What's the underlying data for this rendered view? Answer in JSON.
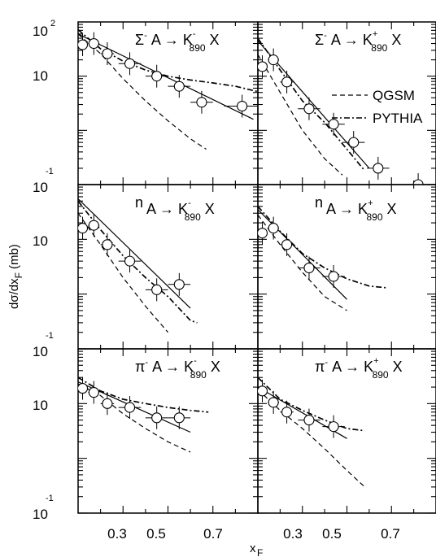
{
  "figure": {
    "ylabel": "dσ/dx",
    "ylabel_sub": "F",
    "ylabel_unit": "(mb)",
    "xlabel": "x",
    "xlabel_sub": "F",
    "legend": [
      {
        "label": "QGSM",
        "style": "dashed"
      },
      {
        "label": "PYTHIA",
        "style": "dash-dot"
      }
    ],
    "y_tick_labels": [
      {
        "base": "10",
        "exp": "2",
        "value": 100
      },
      {
        "base": "10",
        "exp": "",
        "value": 10
      },
      {
        "base": "10",
        "exp": "-1",
        "value": 1
      }
    ],
    "x_tick_labels": [
      "0.3",
      "0.5",
      "0.7"
    ]
  },
  "chart_data": [
    {
      "type": "scatter",
      "row": 0,
      "col": 0,
      "label": {
        "beam": "Σ",
        "beam_sup": "-",
        "target": "A",
        "arrow": "→",
        "product": "K",
        "product_sup": "-",
        "product_sub": "890",
        "x": "X"
      },
      "xlim": [
        0.1,
        0.9
      ],
      "ylim": [
        0.1,
        100
      ],
      "yscale": "log",
      "points": {
        "x": [
          0.12,
          0.17,
          0.23,
          0.33,
          0.45,
          0.55,
          0.65,
          0.83
        ],
        "y": [
          38,
          40,
          26,
          17,
          10,
          6.5,
          3.3,
          2.8
        ],
        "xerr": [
          0.02,
          0.025,
          0.03,
          0.05,
          0.05,
          0.05,
          0.05,
          0.08
        ]
      },
      "fit": {
        "x": [
          0.1,
          0.88
        ],
        "y": [
          60,
          1.6
        ]
      },
      "qgsm": {
        "x": [
          0.1,
          0.2,
          0.3,
          0.4,
          0.5,
          0.6,
          0.67
        ],
        "y": [
          60,
          26,
          9,
          3.5,
          1.5,
          0.7,
          0.45
        ]
      },
      "pythia": {
        "x": [
          0.1,
          0.2,
          0.3,
          0.4,
          0.5,
          0.6,
          0.7,
          0.8,
          0.9
        ],
        "y": [
          72,
          32,
          19,
          13,
          10,
          8.5,
          7.5,
          6.5,
          5.2
        ]
      }
    },
    {
      "type": "scatter",
      "row": 0,
      "col": 1,
      "label": {
        "beam": "Σ",
        "beam_sup": "-",
        "target": "A",
        "arrow": "→",
        "product": "K",
        "product_sup": "+",
        "product_sub": "890",
        "x": "X"
      },
      "xlim": [
        0.1,
        0.9
      ],
      "ylim": [
        0.1,
        100
      ],
      "yscale": "log",
      "points": {
        "x": [
          0.12,
          0.17,
          0.23,
          0.33,
          0.44,
          0.53,
          0.64,
          0.82
        ],
        "y": [
          15,
          20,
          7.8,
          2.5,
          1.3,
          0.6,
          0.2,
          0.1
        ],
        "xerr": [
          0.02,
          0.025,
          0.03,
          0.05,
          0.05,
          0.05,
          0.05,
          0.08
        ]
      },
      "fit": {
        "x": [
          0.1,
          0.6
        ],
        "y": [
          45,
          0.2
        ]
      },
      "qgsm": {
        "x": [
          0.1,
          0.2,
          0.3,
          0.4,
          0.48
        ],
        "y": [
          25,
          5,
          1,
          0.3,
          0.15
        ]
      },
      "pythia": {
        "x": [
          0.1,
          0.2,
          0.3,
          0.4,
          0.5,
          0.58
        ],
        "y": [
          50,
          13,
          3.5,
          1.4,
          0.45,
          0.18
        ]
      }
    },
    {
      "type": "scatter",
      "row": 1,
      "col": 0,
      "label": {
        "beam": "n",
        "beam_sup": "",
        "target": "A",
        "arrow": "→",
        "product": "K",
        "product_sup": "-",
        "product_sub": "890",
        "x": "X"
      },
      "xlim": [
        0.1,
        0.9
      ],
      "ylim": [
        0.1,
        100
      ],
      "yscale": "log",
      "points": {
        "x": [
          0.12,
          0.17,
          0.23,
          0.33,
          0.45,
          0.55
        ],
        "y": [
          16,
          18,
          8,
          4,
          1.2,
          1.5
        ],
        "xerr": [
          0.02,
          0.025,
          0.03,
          0.05,
          0.05,
          0.05
        ]
      },
      "fit": {
        "x": [
          0.1,
          0.6
        ],
        "y": [
          55,
          0.55
        ]
      },
      "qgsm": {
        "x": [
          0.1,
          0.2,
          0.3,
          0.4,
          0.5
        ],
        "y": [
          30,
          8,
          2,
          0.6,
          0.2
        ]
      },
      "pythia": {
        "x": [
          0.1,
          0.2,
          0.3,
          0.4,
          0.5,
          0.6,
          0.63
        ],
        "y": [
          50,
          15,
          5,
          2,
          0.9,
          0.33,
          0.3
        ]
      }
    },
    {
      "type": "scatter",
      "row": 1,
      "col": 1,
      "label": {
        "beam": "n",
        "beam_sup": "",
        "target": "A",
        "arrow": "→",
        "product": "K",
        "product_sup": "+",
        "product_sub": "890",
        "x": "X"
      },
      "xlim": [
        0.1,
        0.9
      ],
      "ylim": [
        0.1,
        100
      ],
      "yscale": "log",
      "points": {
        "x": [
          0.12,
          0.17,
          0.23,
          0.33,
          0.44
        ],
        "y": [
          13,
          16,
          8,
          3,
          2.1
        ],
        "xerr": [
          0.02,
          0.025,
          0.03,
          0.05,
          0.05
        ]
      },
      "fit": {
        "x": [
          0.1,
          0.5
        ],
        "y": [
          35,
          0.8
        ]
      },
      "qgsm": {
        "x": [
          0.1,
          0.2,
          0.3,
          0.4,
          0.5
        ],
        "y": [
          28,
          8,
          2.5,
          0.9,
          0.5
        ]
      },
      "pythia": {
        "x": [
          0.1,
          0.2,
          0.3,
          0.4,
          0.5,
          0.6,
          0.68
        ],
        "y": [
          40,
          14,
          5.5,
          3,
          1.9,
          1.4,
          1.3
        ]
      }
    },
    {
      "type": "scatter",
      "row": 2,
      "col": 0,
      "label": {
        "beam": "π",
        "beam_sup": "-",
        "target": "A",
        "arrow": "→",
        "product": "K",
        "product_sup": "-",
        "product_sub": "890",
        "x": "X"
      },
      "xlim": [
        0.1,
        0.9
      ],
      "ylim": [
        0.1,
        100
      ],
      "yscale": "log",
      "points": {
        "x": [
          0.12,
          0.17,
          0.23,
          0.33,
          0.45,
          0.55
        ],
        "y": [
          19,
          16,
          10,
          8.5,
          5.5,
          5.5
        ],
        "xerr": [
          0.02,
          0.025,
          0.03,
          0.05,
          0.05,
          0.05
        ]
      },
      "fit": {
        "x": [
          0.1,
          0.6
        ],
        "y": [
          25,
          3
        ]
      },
      "qgsm": {
        "x": [
          0.1,
          0.2,
          0.3,
          0.4,
          0.5,
          0.6
        ],
        "y": [
          23,
          14,
          6.5,
          3.5,
          2,
          1.3
        ]
      },
      "pythia": {
        "x": [
          0.1,
          0.2,
          0.3,
          0.4,
          0.5,
          0.6,
          0.68
        ],
        "y": [
          30,
          17,
          12,
          10,
          8.5,
          7.5,
          7
        ]
      }
    },
    {
      "type": "scatter",
      "row": 2,
      "col": 1,
      "label": {
        "beam": "π",
        "beam_sup": "-",
        "target": "A",
        "arrow": "→",
        "product": "K",
        "product_sup": "+",
        "product_sub": "890",
        "x": "X"
      },
      "xlim": [
        0.1,
        0.9
      ],
      "ylim": [
        0.1,
        100
      ],
      "yscale": "log",
      "points": {
        "x": [
          0.12,
          0.17,
          0.23,
          0.33,
          0.44
        ],
        "y": [
          17,
          10.5,
          7,
          5,
          3.8
        ],
        "xerr": [
          0.02,
          0.025,
          0.03,
          0.05,
          0.05
        ]
      },
      "fit": {
        "x": [
          0.1,
          0.5
        ],
        "y": [
          20,
          2.3
        ]
      },
      "qgsm": {
        "x": [
          0.1,
          0.2,
          0.3,
          0.4,
          0.5,
          0.58
        ],
        "y": [
          18,
          7.5,
          3.5,
          1.5,
          0.6,
          0.3
        ]
      },
      "pythia": {
        "x": [
          0.1,
          0.2,
          0.3,
          0.4,
          0.5,
          0.58
        ],
        "y": [
          30,
          12,
          7.5,
          5,
          3.5,
          3.2
        ]
      }
    }
  ]
}
